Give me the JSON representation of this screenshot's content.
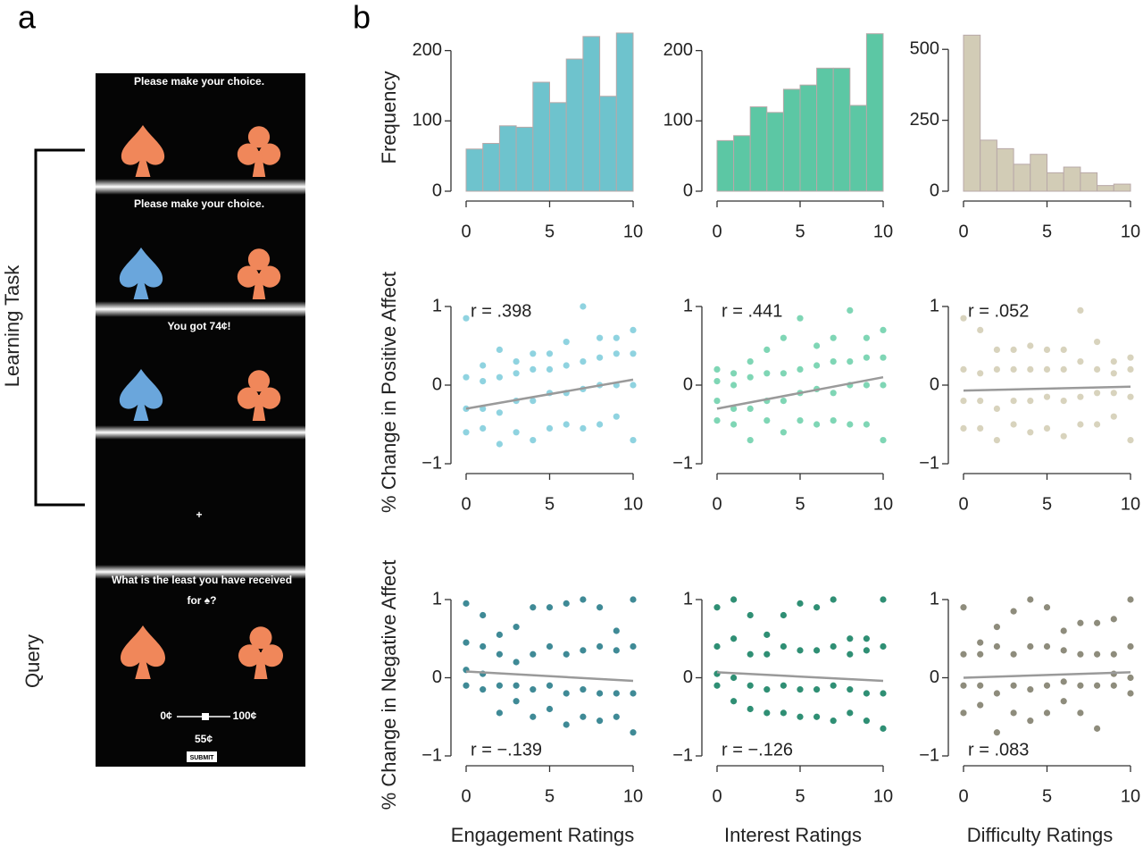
{
  "figure_labels": [
    "a",
    "b"
  ],
  "task": {
    "side_labels": [
      "Learning Task",
      "Query"
    ],
    "prompts": [
      "Please make your choice.",
      "Please make your choice.",
      "You got 74¢!"
    ],
    "fixation": "+",
    "query": [
      "What is the least you have received",
      "for ♠?"
    ],
    "slider": {
      "min": "0¢",
      "max": "100¢",
      "value": "55¢"
    },
    "button": "SUBMIT"
  },
  "chart_data": [
    {
      "type": "histogram",
      "bins": [
        0,
        1,
        2,
        3,
        4,
        5,
        6,
        7,
        8,
        9,
        10
      ],
      "values": [
        60,
        68,
        93,
        91,
        155,
        126,
        188,
        220,
        135,
        225
      ],
      "color": "#6ec3cd",
      "xlim": [
        0,
        10
      ],
      "xticks": [
        0,
        5,
        10
      ],
      "ylim": [
        0,
        230
      ],
      "yticks": [
        0,
        100,
        200
      ],
      "ylabel": "Frequency"
    },
    {
      "type": "histogram",
      "bins": [
        0,
        1,
        2,
        3,
        4,
        5,
        6,
        7,
        8,
        9,
        10
      ],
      "values": [
        72,
        79,
        120,
        112,
        145,
        151,
        175,
        175,
        122,
        224
      ],
      "color": "#5cc7a4",
      "xlim": [
        0,
        10
      ],
      "xticks": [
        0,
        5,
        10
      ],
      "ylim": [
        0,
        230
      ],
      "yticks": [
        0,
        100,
        200
      ]
    },
    {
      "type": "histogram",
      "bins": [
        0,
        1,
        2,
        3,
        4,
        5,
        6,
        7,
        8,
        9,
        10
      ],
      "values": [
        550,
        180,
        150,
        95,
        130,
        65,
        85,
        65,
        20,
        25
      ],
      "color": "#d2ccb6",
      "xlim": [
        0,
        10
      ],
      "xticks": [
        0,
        5,
        10
      ],
      "ylim": [
        0,
        570
      ],
      "yticks": [
        0,
        250,
        500
      ]
    },
    {
      "type": "scatter",
      "color": "#8fd3e0",
      "annotation": "r = .398",
      "ylabel": "% Change in Positive Affect",
      "x": [
        0,
        0,
        0,
        0,
        1,
        1,
        1,
        1,
        2,
        2,
        2,
        2,
        3,
        3,
        3,
        3,
        4,
        4,
        4,
        4,
        5,
        5,
        5,
        5,
        6,
        6,
        6,
        6,
        7,
        7,
        7,
        7,
        8,
        8,
        8,
        8,
        9,
        9,
        9,
        9,
        10,
        10,
        10,
        10
      ],
      "y": [
        -0.6,
        -0.3,
        0.1,
        0.85,
        -0.55,
        -0.3,
        0.05,
        0.25,
        -0.75,
        -0.35,
        0.1,
        0.45,
        -0.6,
        -0.2,
        0.15,
        0.3,
        -0.7,
        -0.2,
        0.2,
        0.4,
        -0.55,
        -0.1,
        0.2,
        0.4,
        -0.5,
        -0.1,
        0.25,
        0.55,
        -0.55,
        -0.05,
        0.3,
        1.0,
        -0.5,
        0,
        0.35,
        0.6,
        -0.4,
        0,
        0.4,
        0.6,
        -0.7,
        0,
        0.4,
        0.7
      ],
      "trend": {
        "x": [
          0,
          10
        ],
        "y": [
          -0.3,
          0.07
        ]
      },
      "xlim": [
        0,
        10
      ],
      "xticks": [
        0,
        5,
        10
      ],
      "ylim": [
        -1,
        1
      ],
      "yticks": [
        {
          "value": -1,
          "label": "−1"
        },
        0,
        1
      ]
    },
    {
      "type": "scatter",
      "color": "#7fd6b5",
      "annotation": "r = .441",
      "x": [
        0,
        0,
        0,
        0,
        1,
        1,
        1,
        1,
        2,
        2,
        2,
        2,
        3,
        3,
        3,
        3,
        4,
        4,
        4,
        4,
        5,
        5,
        5,
        5,
        6,
        6,
        6,
        6,
        7,
        7,
        7,
        7,
        8,
        8,
        8,
        8,
        9,
        9,
        9,
        9,
        10,
        10,
        10,
        10
      ],
      "y": [
        -0.45,
        -0.2,
        0.05,
        0.2,
        -0.5,
        -0.3,
        0,
        0.15,
        -0.7,
        -0.3,
        0.1,
        0.3,
        -0.45,
        -0.2,
        0.15,
        0.45,
        -0.6,
        -0.2,
        0.15,
        0.6,
        -0.45,
        -0.1,
        0.2,
        0.85,
        -0.5,
        -0.05,
        0.25,
        0.5,
        -0.45,
        -0.1,
        0.3,
        0.6,
        -0.5,
        0,
        0.3,
        0.95,
        -0.5,
        0,
        0.35,
        0.6,
        -0.7,
        0,
        0.35,
        0.7
      ],
      "trend": {
        "x": [
          0,
          10
        ],
        "y": [
          -0.3,
          0.1
        ]
      },
      "xlim": [
        0,
        10
      ],
      "xticks": [
        0,
        5,
        10
      ],
      "ylim": [
        -1,
        1
      ],
      "yticks": [
        {
          "value": -1,
          "label": "−1"
        },
        0,
        1
      ]
    },
    {
      "type": "scatter",
      "color": "#d8d3bd",
      "annotation": "r = .052",
      "x": [
        0,
        0,
        0,
        0,
        1,
        1,
        1,
        1,
        2,
        2,
        2,
        2,
        3,
        3,
        3,
        3,
        4,
        4,
        4,
        4,
        5,
        5,
        5,
        5,
        6,
        6,
        6,
        6,
        7,
        7,
        7,
        7,
        8,
        8,
        8,
        8,
        9,
        9,
        9,
        9,
        10,
        10,
        10,
        10
      ],
      "y": [
        -0.55,
        -0.2,
        0.2,
        0.85,
        -0.55,
        -0.2,
        0.15,
        0.7,
        -0.7,
        -0.3,
        0.2,
        0.45,
        -0.5,
        -0.2,
        0.2,
        0.45,
        -0.6,
        -0.2,
        0.2,
        0.5,
        -0.55,
        -0.15,
        0.2,
        0.45,
        -0.65,
        -0.2,
        0.2,
        0.45,
        -0.5,
        -0.15,
        0.3,
        0.95,
        -0.5,
        -0.1,
        0.2,
        0.55,
        -0.4,
        -0.1,
        0.15,
        0.3,
        -0.7,
        -0.15,
        0.2,
        0.35
      ],
      "trend": {
        "x": [
          0,
          10
        ],
        "y": [
          -0.07,
          -0.02
        ]
      },
      "xlim": [
        0,
        10
      ],
      "xticks": [
        0,
        5,
        10
      ],
      "ylim": [
        -1,
        1
      ],
      "yticks": [
        {
          "value": -1,
          "label": "−1"
        },
        0,
        1
      ]
    },
    {
      "type": "scatter",
      "color": "#3f8a96",
      "annotation": "r = −.139",
      "ylabel": "% Change in Negative Affect",
      "xlabel": "Engagement Ratings",
      "x": [
        0,
        0,
        0,
        0,
        1,
        1,
        1,
        1,
        2,
        2,
        2,
        2,
        3,
        3,
        3,
        3,
        4,
        4,
        4,
        4,
        5,
        5,
        5,
        5,
        6,
        6,
        6,
        6,
        7,
        7,
        7,
        7,
        8,
        8,
        8,
        8,
        9,
        9,
        9,
        9,
        10,
        10,
        10,
        10
      ],
      "y": [
        -0.1,
        0.1,
        0.45,
        0.95,
        -0.15,
        0.05,
        0.4,
        0.8,
        -0.45,
        -0.1,
        0.3,
        0.55,
        -0.3,
        -0.1,
        0.2,
        0.65,
        -0.5,
        -0.15,
        0.3,
        0.9,
        -0.4,
        -0.1,
        0.4,
        0.9,
        -0.6,
        -0.2,
        0.3,
        0.95,
        -0.5,
        -0.15,
        0.35,
        1.0,
        -0.55,
        -0.2,
        0.4,
        0.9,
        -0.5,
        -0.2,
        0.35,
        0.6,
        -0.7,
        -0.2,
        0.4,
        1.0
      ],
      "trend": {
        "x": [
          0,
          10
        ],
        "y": [
          0.08,
          -0.04
        ]
      },
      "xlim": [
        0,
        10
      ],
      "xticks": [
        0,
        5,
        10
      ],
      "ylim": [
        -1,
        1
      ],
      "yticks": [
        {
          "value": -1,
          "label": "−1"
        },
        0,
        1
      ]
    },
    {
      "type": "scatter",
      "color": "#2f8f74",
      "annotation": "r = −.126",
      "xlabel": "Interest Ratings",
      "x": [
        0,
        0,
        0,
        0,
        1,
        1,
        1,
        1,
        2,
        2,
        2,
        2,
        3,
        3,
        3,
        3,
        4,
        4,
        4,
        4,
        5,
        5,
        5,
        5,
        6,
        6,
        6,
        6,
        7,
        7,
        7,
        7,
        8,
        8,
        8,
        8,
        9,
        9,
        9,
        9,
        10,
        10,
        10,
        10
      ],
      "y": [
        -0.1,
        0.05,
        0.4,
        0.9,
        -0.3,
        0,
        0.5,
        1.0,
        -0.4,
        -0.1,
        0.3,
        0.8,
        -0.45,
        -0.15,
        0.3,
        0.55,
        -0.45,
        -0.1,
        0.4,
        0.8,
        -0.5,
        -0.15,
        0.35,
        0.95,
        -0.5,
        -0.15,
        0.35,
        0.9,
        -0.55,
        -0.1,
        0.4,
        1.0,
        -0.45,
        -0.15,
        0.3,
        0.5,
        -0.55,
        -0.2,
        0.35,
        0.5,
        -0.65,
        -0.2,
        0.4,
        1.0
      ],
      "trend": {
        "x": [
          0,
          10
        ],
        "y": [
          0.07,
          -0.04
        ]
      },
      "xlim": [
        0,
        10
      ],
      "xticks": [
        0,
        5,
        10
      ],
      "ylim": [
        -1,
        1
      ],
      "yticks": [
        {
          "value": -1,
          "label": "−1"
        },
        0,
        1
      ]
    },
    {
      "type": "scatter",
      "color": "#8e8c7c",
      "annotation": "r = .083",
      "xlabel": "Difficulty Ratings",
      "x": [
        0,
        0,
        0,
        0,
        1,
        1,
        1,
        1,
        2,
        2,
        2,
        2,
        3,
        3,
        3,
        3,
        4,
        4,
        4,
        4,
        5,
        5,
        5,
        5,
        6,
        6,
        6,
        6,
        7,
        7,
        7,
        7,
        8,
        8,
        8,
        8,
        9,
        9,
        9,
        9,
        10,
        10,
        10,
        10
      ],
      "y": [
        -0.45,
        -0.1,
        0.3,
        0.9,
        -0.35,
        -0.1,
        0.3,
        0.45,
        -0.7,
        -0.2,
        0.4,
        0.65,
        -0.45,
        -0.1,
        0.3,
        0.85,
        -0.55,
        -0.15,
        0.4,
        1.0,
        -0.45,
        -0.1,
        0.4,
        0.9,
        -0.3,
        -0.05,
        0.35,
        0.6,
        -0.45,
        -0.1,
        0.3,
        0.7,
        -0.65,
        -0.1,
        0.3,
        0.7,
        -0.1,
        0.05,
        0.3,
        0.75,
        -0.2,
        0,
        0.4,
        1.0
      ],
      "trend": {
        "x": [
          0,
          10
        ],
        "y": [
          0,
          0.07
        ]
      },
      "xlim": [
        0,
        10
      ],
      "xticks": [
        0,
        5,
        10
      ],
      "ylim": [
        -1,
        1
      ],
      "yticks": [
        {
          "value": -1,
          "label": "−1"
        },
        0,
        1
      ]
    }
  ]
}
